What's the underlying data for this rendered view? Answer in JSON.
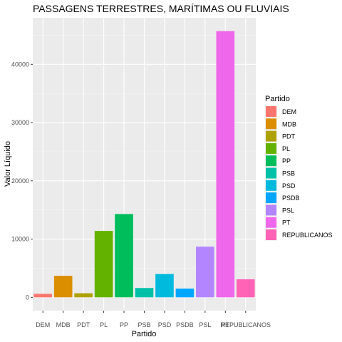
{
  "chart_data": {
    "type": "bar",
    "title": "PASSAGENS TERRESTRES, MARÍTIMAS OU FLUVIAIS",
    "xlabel": "Partido",
    "ylabel": "Valor Líquido",
    "categories": [
      "DEM",
      "MDB",
      "PDT",
      "PL",
      "PP",
      "PSB",
      "PSD",
      "PSDB",
      "PSL",
      "PT",
      "REPUBLICANOS"
    ],
    "values": [
      600,
      3700,
      700,
      11400,
      14300,
      1600,
      4000,
      1500,
      8700,
      45700,
      3100
    ],
    "colors": [
      "#F8766D",
      "#DB8E00",
      "#AEA200",
      "#64B200",
      "#00BD5C",
      "#00C1A7",
      "#00BADE",
      "#00A6FF",
      "#B385FF",
      "#EF67EB",
      "#FF63B6"
    ],
    "yticks": [
      0,
      10000,
      20000,
      30000,
      40000
    ],
    "ytick_labels": [
      "0",
      "10000",
      "20000",
      "30000",
      "40000"
    ],
    "ylim": [
      -2285,
      47985
    ],
    "grid": true,
    "legend": {
      "title": "Partido",
      "placement": "right",
      "entries": [
        "DEM",
        "MDB",
        "PDT",
        "PL",
        "PP",
        "PSB",
        "PSD",
        "PSDB",
        "PSL",
        "PT",
        "REPUBLICANOS"
      ]
    }
  }
}
